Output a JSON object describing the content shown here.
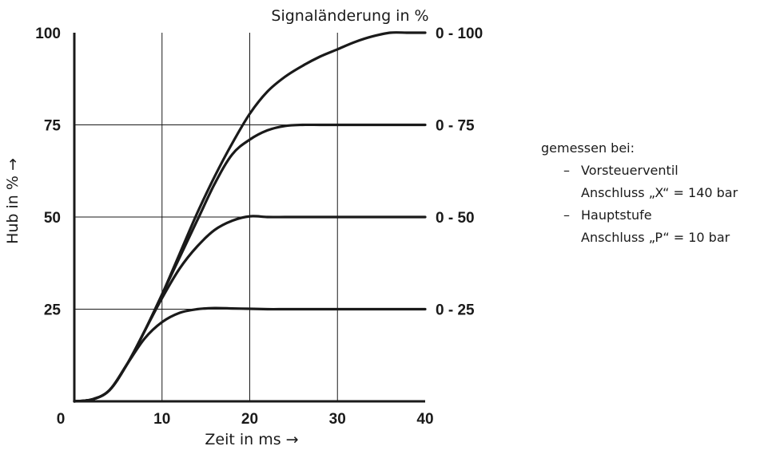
{
  "chart_data": {
    "type": "line",
    "title": "Signaländerung in %",
    "xlabel": "Zeit in ms →",
    "ylabel": "Hub in % →",
    "xlim": [
      0,
      40
    ],
    "ylim": [
      0,
      100
    ],
    "x_ticks": [
      "0",
      "10",
      "20",
      "30",
      "40"
    ],
    "y_ticks": [
      "25",
      "50",
      "75",
      "100"
    ],
    "grid": true,
    "series": [
      {
        "name": "0 - 100",
        "x": [
          0,
          2,
          4,
          6,
          8,
          10,
          12,
          14,
          16,
          18,
          20,
          22,
          24,
          26,
          28,
          30,
          32,
          34,
          36,
          38,
          40
        ],
        "y": [
          0,
          0.5,
          3,
          10,
          19,
          29,
          40,
          51,
          61,
          70,
          78,
          84,
          88,
          91,
          93.5,
          95.5,
          97.5,
          99,
          100,
          100,
          100
        ]
      },
      {
        "name": "0 - 75",
        "x": [
          0,
          2,
          4,
          6,
          8,
          10,
          12,
          14,
          16,
          18,
          20,
          22,
          24,
          26,
          28,
          30,
          32,
          34,
          36,
          38,
          40
        ],
        "y": [
          0,
          0.5,
          3,
          10,
          19,
          29,
          39,
          49,
          59,
          67,
          71,
          73.5,
          74.7,
          75,
          75,
          75,
          75,
          75,
          75,
          75,
          75
        ]
      },
      {
        "name": "0 - 50",
        "x": [
          0,
          2,
          4,
          6,
          8,
          10,
          12,
          14,
          16,
          18,
          20,
          22,
          24,
          26,
          28,
          30,
          32,
          34,
          36,
          38,
          40
        ],
        "y": [
          0,
          0.5,
          3,
          10,
          19,
          28,
          36,
          42,
          46.5,
          49,
          50.2,
          50,
          50,
          50,
          50,
          50,
          50,
          50,
          50,
          50,
          50
        ]
      },
      {
        "name": "0 - 25",
        "x": [
          0,
          2,
          4,
          6,
          8,
          10,
          12,
          14,
          16,
          18,
          20,
          22,
          24,
          26,
          28,
          30,
          32,
          34,
          36,
          38,
          40
        ],
        "y": [
          0,
          0.5,
          3,
          10,
          17,
          21.5,
          24,
          25,
          25.3,
          25.2,
          25.1,
          25,
          25,
          25,
          25,
          25,
          25,
          25,
          25,
          25,
          25
        ]
      }
    ],
    "annotation": {
      "heading": "gemessen bei:",
      "items": [
        {
          "dash": "–",
          "line1": "Vorsteuerventil",
          "line2": "Anschluss „X“ = 140 bar"
        },
        {
          "dash": "–",
          "line1": "Hauptstufe",
          "line2": "Anschluss „P“ = 10 bar"
        }
      ]
    }
  }
}
